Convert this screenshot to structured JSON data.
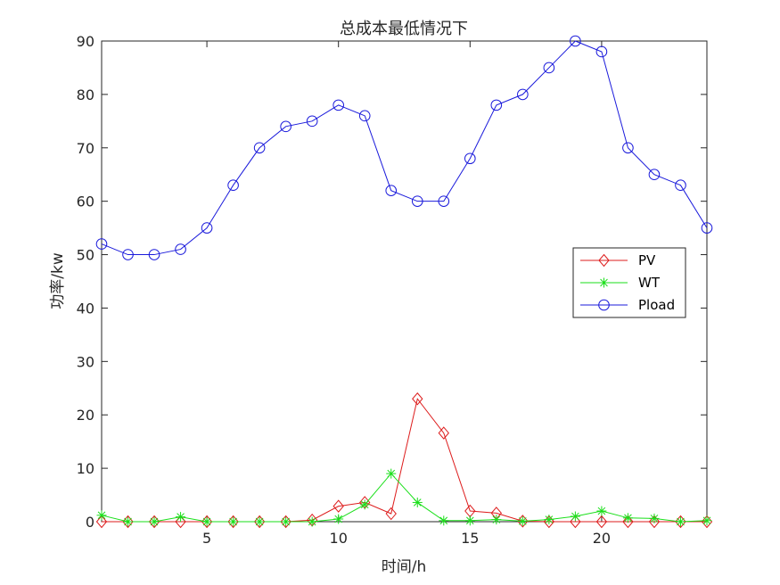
{
  "chart_data": {
    "type": "line",
    "title": "总成本最低情况下",
    "xlabel": "时间/h",
    "ylabel": "功率/kw",
    "xlim": [
      1,
      24
    ],
    "ylim": [
      0,
      90
    ],
    "xticks": [
      5,
      10,
      15,
      20
    ],
    "yticks": [
      0,
      10,
      20,
      30,
      40,
      50,
      60,
      70,
      80,
      90
    ],
    "grid": false,
    "legend_position": "right",
    "x": [
      1,
      2,
      3,
      4,
      5,
      6,
      7,
      8,
      9,
      10,
      11,
      12,
      13,
      14,
      15,
      16,
      17,
      18,
      19,
      20,
      21,
      22,
      23,
      24
    ],
    "series": [
      {
        "name": "PV",
        "color": "#dd1c1c",
        "marker": "diamond",
        "values": [
          0,
          0,
          0,
          0,
          0,
          0,
          0,
          0,
          0.3,
          2.9,
          3.6,
          1.5,
          23,
          16.6,
          2.0,
          1.6,
          0.1,
          0,
          0,
          0,
          0,
          0,
          0,
          0
        ]
      },
      {
        "name": "WT",
        "color": "#1adf1a",
        "marker": "asterisk",
        "values": [
          1.2,
          0,
          0,
          0.9,
          0,
          0,
          0,
          0,
          0,
          0.5,
          3.2,
          9,
          3.6,
          0.2,
          0.2,
          0.4,
          0.1,
          0.4,
          1.0,
          2.0,
          0.7,
          0.6,
          0,
          0.2
        ]
      },
      {
        "name": "Pload",
        "color": "#1a1adb",
        "marker": "circle",
        "values": [
          52,
          50,
          50,
          51,
          55,
          63,
          70,
          74,
          75,
          78,
          76,
          62,
          60,
          60,
          68,
          78,
          80,
          85,
          90,
          88,
          70,
          65,
          63,
          55
        ]
      }
    ]
  }
}
